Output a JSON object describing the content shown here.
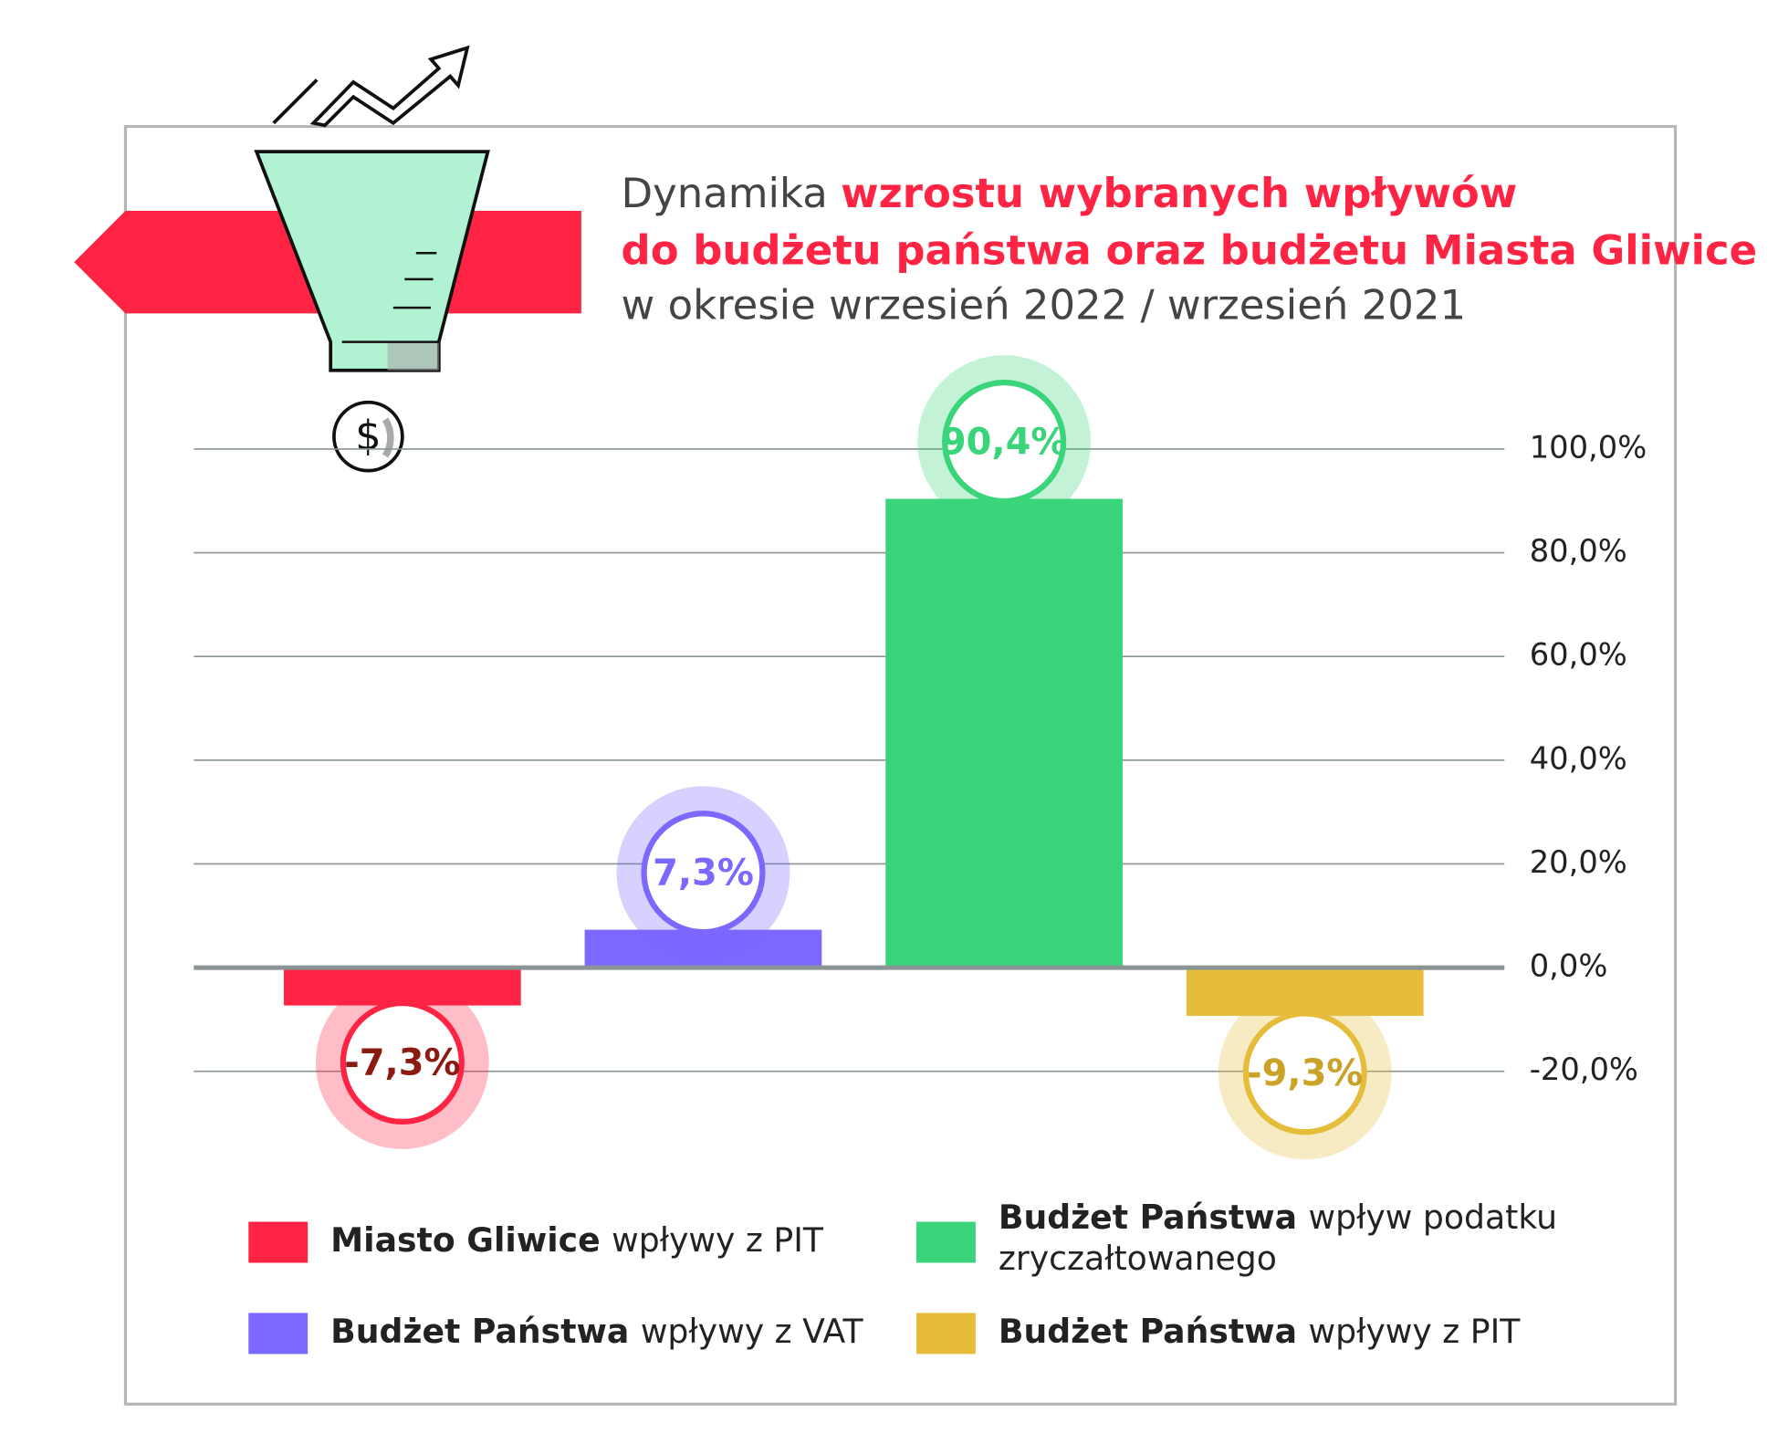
{
  "chart_data": {
    "type": "bar",
    "title": {
      "lead": "Dynamika",
      "highlight1": "wzrostu wybranych wpływów",
      "highlight2": "do budżetu państwa oraz budżetu Miasta Gliwice",
      "tail": "w okresie wrzesień 2022 / wrzesień 2021"
    },
    "series": [
      {
        "label_bold": "Miasto Gliwice",
        "label": "wpływy z PIT",
        "color": "#ff2344",
        "text_color": "#8b1a10",
        "values": [
          -7.3
        ],
        "value_labels": [
          "-7,3%"
        ]
      },
      {
        "label_bold": "Budżet Państwa",
        "label": "wpływy z VAT",
        "color": "#7b68ff",
        "text_color": "#7b68ff",
        "values": [
          7.3
        ],
        "value_labels": [
          "7,3%"
        ]
      },
      {
        "label_bold": "Budżet Państwa",
        "label": "wpływ podatku",
        "label_cont": "zryczałtowanego",
        "color": "#3ad47a",
        "text_color": "#3ad47a",
        "values": [
          90.4
        ],
        "value_labels": [
          "90,4%"
        ]
      },
      {
        "label_bold": "Budżet Państwa",
        "label": "wpływy z PIT",
        "color": "#e5bd3a",
        "text_color": "#c9a227",
        "values": [
          -9.3
        ],
        "value_labels": [
          "-9,3%"
        ]
      }
    ],
    "ylim": [
      -20,
      100
    ],
    "yticks": [
      {
        "value": -20,
        "label": "-20,0%"
      },
      {
        "value": 0,
        "label": "0,0%"
      },
      {
        "value": 20,
        "label": "20,0%"
      },
      {
        "value": 40,
        "label": "40,0%"
      },
      {
        "value": 60,
        "label": "60,0%"
      },
      {
        "value": 80,
        "label": "80,0%"
      },
      {
        "value": 100,
        "label": "100,0%"
      }
    ],
    "grid": true
  }
}
